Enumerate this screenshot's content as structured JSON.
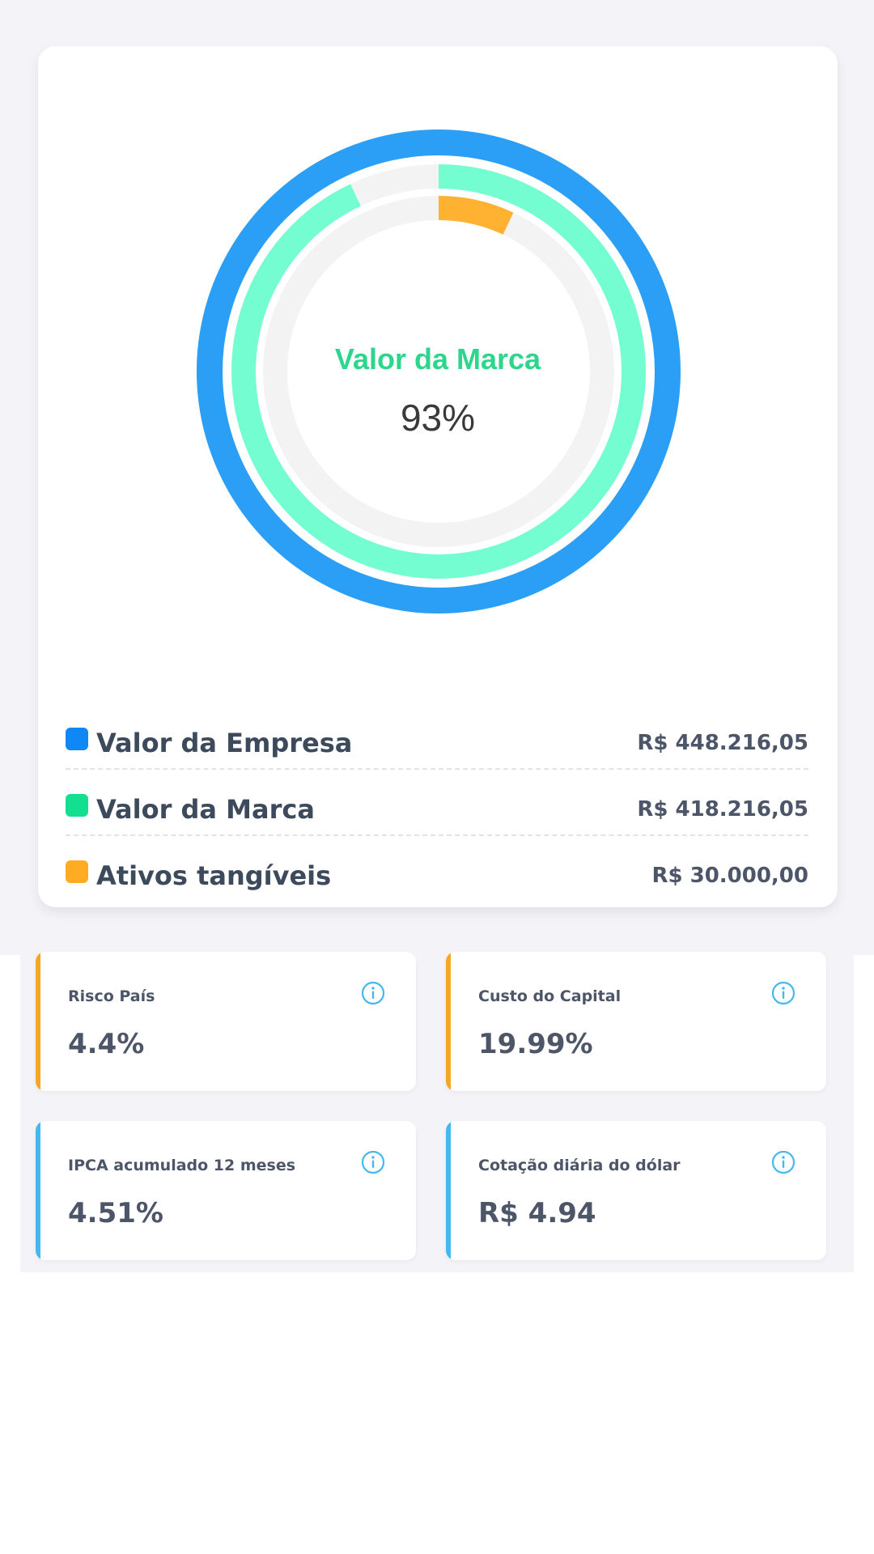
{
  "chart_data": {
    "type": "pie",
    "center_label": "Valor da Marca",
    "center_value": "93%",
    "rings": [
      {
        "name": "Valor da Empresa",
        "fraction": 1.0,
        "color": "#2b9ef5"
      },
      {
        "name": "Valor da Marca",
        "fraction": 0.93,
        "color": "#73fdd1"
      },
      {
        "name": "Ativos tangíveis",
        "fraction": 0.07,
        "color": "#ffb232"
      }
    ],
    "track_color": "#f3f3f3"
  },
  "legend": [
    {
      "label": "Valor da Empresa",
      "value": "R$ 448.216,05",
      "color": "#0f88f6"
    },
    {
      "label": "Valor da Marca",
      "value": "R$ 418.216,05",
      "color": "#12df8f"
    },
    {
      "label": "Ativos tangíveis",
      "value": "R$ 30.000,00",
      "color": "#ffab23"
    }
  ],
  "metrics": [
    {
      "title": "Risco País",
      "value": "4.4%",
      "accent": "#f5a623",
      "icon": "info-icon"
    },
    {
      "title": "Custo do Capital",
      "value": "19.99%",
      "accent": "#f5a623",
      "icon": "info-icon"
    },
    {
      "title": "IPCA acumulado 12 meses",
      "value": "4.51%",
      "accent": "#46b8f0",
      "icon": "info-icon"
    },
    {
      "title": "Cotação diária do dólar",
      "value": "R$ 4.94",
      "accent": "#46b8f0",
      "icon": "info-icon"
    }
  ],
  "info_icon_color": "#46b8f0"
}
